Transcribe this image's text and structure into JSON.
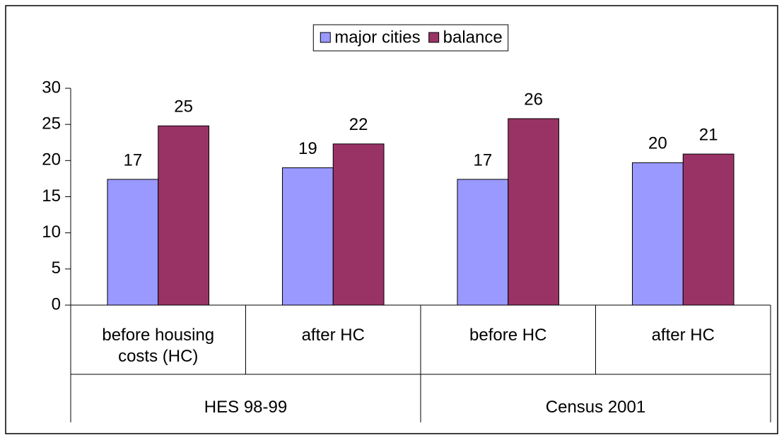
{
  "chart_data": {
    "type": "bar",
    "groups": [
      {
        "name": "HES 98-99",
        "categories": [
          "before housing costs (HC)",
          "after HC"
        ]
      },
      {
        "name": "Census 2001",
        "categories": [
          "before HC",
          "after HC"
        ]
      }
    ],
    "series": [
      {
        "name": "major cities",
        "color": "#9999ff",
        "values": [
          17.4,
          19.0,
          17.4,
          19.7
        ],
        "value_labels": [
          "17",
          "19",
          "17",
          "20"
        ]
      },
      {
        "name": "balance",
        "color": "#993366",
        "values": [
          24.8,
          22.3,
          25.8,
          20.9
        ],
        "value_labels": [
          "25",
          "22",
          "26",
          "21"
        ]
      }
    ],
    "ylim": [
      0,
      30
    ],
    "yticks": [
      0,
      5,
      10,
      15,
      20,
      25,
      30
    ],
    "legend": "top"
  }
}
